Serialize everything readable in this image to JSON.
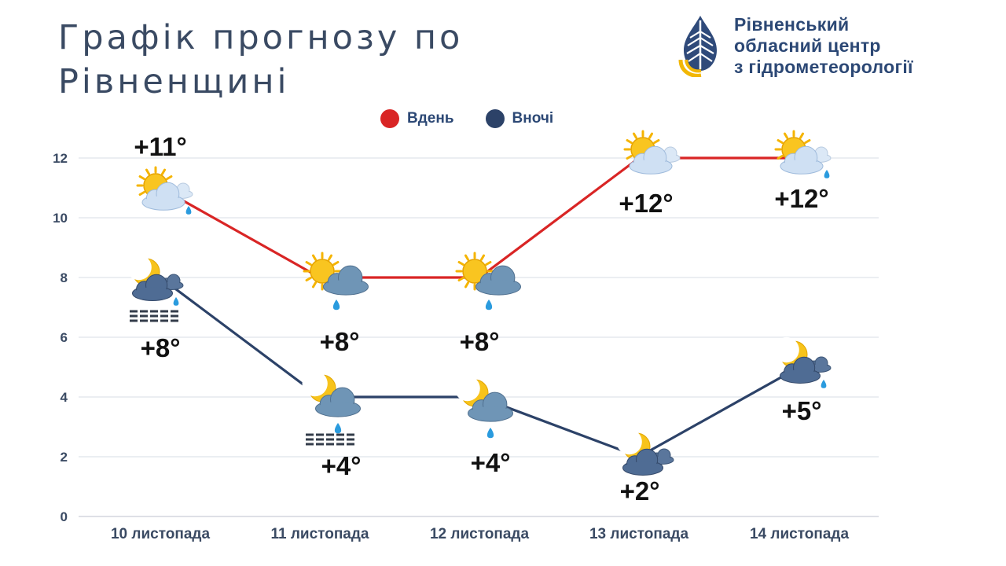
{
  "title": {
    "line1": "Графік прогнозу по",
    "line2": "Рівненщині"
  },
  "org": {
    "line1": "Рівненський",
    "line2": "обласний центр",
    "line3": "з гідрометеорології",
    "logo_icon": "water-drop-leaf-icon"
  },
  "colors": {
    "day": "#d92525",
    "night": "#2c4268",
    "text": "#3a4a63",
    "grid": "#dfe3ea"
  },
  "chart_data": {
    "type": "line",
    "categories": [
      "10 листопада",
      "11 листопада",
      "12 листопада",
      "13 листопада",
      "14 листопада"
    ],
    "ylim": [
      0,
      12
    ],
    "yticks": [
      "0",
      "2",
      "4",
      "6",
      "8",
      "10",
      "12"
    ],
    "grid": true,
    "legend": "top-center",
    "series": [
      {
        "name": "Вдень",
        "values": [
          11,
          8,
          8,
          12,
          12
        ],
        "labels": [
          "+11°",
          "+8°",
          "+8°",
          "+12°",
          "+12°"
        ],
        "icons": [
          "sun-behind-cloud-light-rain-icon",
          "sun-behind-cloud-rain-icon",
          "sun-behind-cloud-rain-icon",
          "sun-behind-cloud-icon",
          "sun-behind-cloud-light-rain-icon"
        ]
      },
      {
        "name": "Вночі",
        "values": [
          8,
          4,
          4,
          2,
          5
        ],
        "labels": [
          "+8°",
          "+4°",
          "+4°",
          "+2°",
          "+5°"
        ],
        "icons": [
          "moon-cloud-rain-fog-icon",
          "moon-cloud-rain-fog-icon",
          "moon-cloud-rain-icon",
          "moon-cloud-icon",
          "moon-cloud-light-rain-icon"
        ]
      }
    ]
  }
}
